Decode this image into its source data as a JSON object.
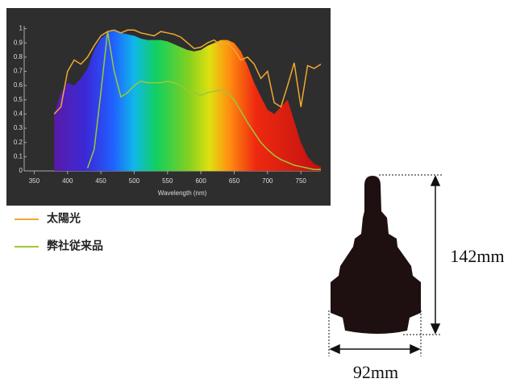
{
  "chart_data": {
    "type": "line",
    "xlabel": "Wavelength (nm)",
    "x": [
      380,
      390,
      400,
      410,
      420,
      430,
      440,
      450,
      460,
      470,
      480,
      490,
      500,
      510,
      520,
      530,
      540,
      550,
      560,
      570,
      580,
      590,
      600,
      610,
      620,
      630,
      640,
      650,
      660,
      670,
      680,
      690,
      700,
      710,
      720,
      730,
      740,
      750,
      760,
      770,
      780
    ],
    "series": [
      {
        "values": [
          0.4,
          0.55,
          0.62,
          0.6,
          0.65,
          0.72,
          0.85,
          0.93,
          0.97,
          0.99,
          0.97,
          0.96,
          0.95,
          0.93,
          0.92,
          0.92,
          0.92,
          0.91,
          0.89,
          0.87,
          0.85,
          0.84,
          0.85,
          0.88,
          0.9,
          0.92,
          0.92,
          0.9,
          0.84,
          0.74,
          0.62,
          0.52,
          0.43,
          0.4,
          0.45,
          0.5,
          0.35,
          0.2,
          0.1,
          0.05,
          0.03
        ]
      },
      {
        "name": "太陽光",
        "color": "#f0a830",
        "values": [
          0.4,
          0.45,
          0.7,
          0.78,
          0.75,
          0.8,
          0.88,
          0.95,
          0.98,
          0.99,
          0.97,
          0.99,
          0.99,
          0.97,
          0.96,
          0.95,
          0.98,
          0.97,
          0.96,
          0.94,
          0.9,
          0.86,
          0.87,
          0.9,
          0.92,
          0.88,
          0.9,
          0.85,
          0.78,
          0.8,
          0.75,
          0.65,
          0.7,
          0.48,
          0.45,
          0.6,
          0.76,
          0.45,
          0.74,
          0.72,
          0.75
        ]
      },
      {
        "name": "弊社従来品",
        "color": "#9cc83a",
        "values": [
          null,
          null,
          null,
          null,
          null,
          0.02,
          0.15,
          0.55,
          0.98,
          0.7,
          0.52,
          0.55,
          0.6,
          0.63,
          0.62,
          0.62,
          0.62,
          0.63,
          0.62,
          0.6,
          0.56,
          0.55,
          0.53,
          0.55,
          0.56,
          0.57,
          0.55,
          0.5,
          0.42,
          0.34,
          0.27,
          0.2,
          0.15,
          0.11,
          0.08,
          0.06,
          0.04,
          0.03,
          0.02,
          0.01,
          0.01
        ]
      }
    ],
    "xlim": [
      335,
      780
    ],
    "xticks": [
      350,
      400,
      450,
      500,
      550,
      600,
      650,
      700,
      750
    ],
    "ylim": [
      0,
      1.02
    ],
    "yticks": [
      0,
      0.1,
      0.2,
      0.3,
      0.4,
      0.5,
      0.6,
      0.7,
      0.8,
      0.9,
      1
    ]
  },
  "diagram": {
    "height": "142mm",
    "width": "92mm"
  }
}
